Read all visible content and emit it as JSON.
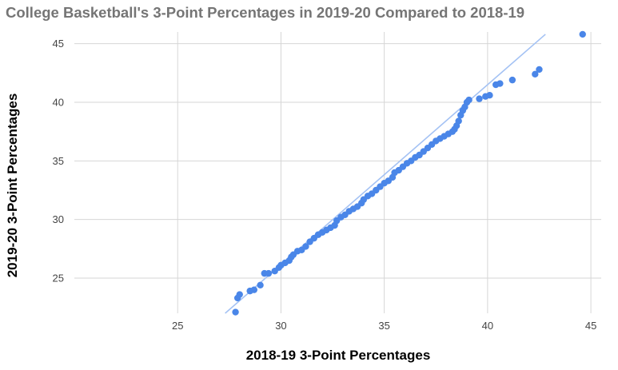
{
  "chart_data": {
    "type": "scatter",
    "title": "College Basketball's 3-Point Percentages in 2019-20 Compared to 2018-19",
    "xlabel": "2018-19 3-Point Percentages",
    "ylabel": "2019-20 3-Point Percentages",
    "xlim": [
      20,
      45.5
    ],
    "ylim": [
      22,
      46
    ],
    "xticks": [
      25,
      30,
      35,
      40,
      45
    ],
    "yticks": [
      25,
      30,
      35,
      40,
      45
    ],
    "grid": true,
    "legend": "none",
    "colors": {
      "points": "#4a86e8",
      "trendline": "#a4c2f4"
    },
    "trendline": {
      "x": [
        27.3,
        42.8
      ],
      "y": [
        22.0,
        45.8
      ]
    },
    "points": [
      {
        "x": 27.8,
        "y": 22.1
      },
      {
        "x": 27.9,
        "y": 23.3
      },
      {
        "x": 28.0,
        "y": 23.6
      },
      {
        "x": 28.5,
        "y": 23.9
      },
      {
        "x": 28.7,
        "y": 24.0
      },
      {
        "x": 29.0,
        "y": 24.4
      },
      {
        "x": 29.2,
        "y": 25.4
      },
      {
        "x": 29.4,
        "y": 25.4
      },
      {
        "x": 29.7,
        "y": 25.6
      },
      {
        "x": 29.9,
        "y": 25.9
      },
      {
        "x": 30.0,
        "y": 26.1
      },
      {
        "x": 30.2,
        "y": 26.3
      },
      {
        "x": 30.4,
        "y": 26.5
      },
      {
        "x": 30.5,
        "y": 26.8
      },
      {
        "x": 30.6,
        "y": 27.0
      },
      {
        "x": 30.8,
        "y": 27.3
      },
      {
        "x": 31.0,
        "y": 27.4
      },
      {
        "x": 31.2,
        "y": 27.7
      },
      {
        "x": 31.4,
        "y": 28.1
      },
      {
        "x": 31.6,
        "y": 28.4
      },
      {
        "x": 31.8,
        "y": 28.7
      },
      {
        "x": 32.0,
        "y": 28.9
      },
      {
        "x": 32.2,
        "y": 29.1
      },
      {
        "x": 32.4,
        "y": 29.3
      },
      {
        "x": 32.6,
        "y": 29.5
      },
      {
        "x": 32.7,
        "y": 29.9
      },
      {
        "x": 32.9,
        "y": 30.2
      },
      {
        "x": 33.1,
        "y": 30.4
      },
      {
        "x": 33.3,
        "y": 30.7
      },
      {
        "x": 33.5,
        "y": 30.9
      },
      {
        "x": 33.7,
        "y": 31.1
      },
      {
        "x": 33.9,
        "y": 31.4
      },
      {
        "x": 34.0,
        "y": 31.7
      },
      {
        "x": 34.2,
        "y": 32.0
      },
      {
        "x": 34.4,
        "y": 32.2
      },
      {
        "x": 34.6,
        "y": 32.5
      },
      {
        "x": 34.8,
        "y": 32.8
      },
      {
        "x": 35.0,
        "y": 33.1
      },
      {
        "x": 35.2,
        "y": 33.3
      },
      {
        "x": 35.4,
        "y": 33.6
      },
      {
        "x": 35.5,
        "y": 34.0
      },
      {
        "x": 35.7,
        "y": 34.2
      },
      {
        "x": 35.9,
        "y": 34.5
      },
      {
        "x": 36.1,
        "y": 34.8
      },
      {
        "x": 36.3,
        "y": 35.0
      },
      {
        "x": 36.5,
        "y": 35.3
      },
      {
        "x": 36.7,
        "y": 35.5
      },
      {
        "x": 36.9,
        "y": 35.8
      },
      {
        "x": 37.1,
        "y": 36.1
      },
      {
        "x": 37.3,
        "y": 36.4
      },
      {
        "x": 37.5,
        "y": 36.7
      },
      {
        "x": 37.7,
        "y": 36.9
      },
      {
        "x": 37.9,
        "y": 37.1
      },
      {
        "x": 38.1,
        "y": 37.3
      },
      {
        "x": 38.3,
        "y": 37.5
      },
      {
        "x": 38.4,
        "y": 37.7
      },
      {
        "x": 38.5,
        "y": 38.0
      },
      {
        "x": 38.6,
        "y": 38.4
      },
      {
        "x": 38.7,
        "y": 38.9
      },
      {
        "x": 38.8,
        "y": 39.3
      },
      {
        "x": 38.9,
        "y": 39.6
      },
      {
        "x": 39.0,
        "y": 40.0
      },
      {
        "x": 39.1,
        "y": 40.2
      },
      {
        "x": 39.6,
        "y": 40.3
      },
      {
        "x": 39.9,
        "y": 40.5
      },
      {
        "x": 40.1,
        "y": 40.6
      },
      {
        "x": 40.4,
        "y": 41.5
      },
      {
        "x": 40.6,
        "y": 41.6
      },
      {
        "x": 41.2,
        "y": 41.9
      },
      {
        "x": 42.3,
        "y": 42.4
      },
      {
        "x": 42.5,
        "y": 42.8
      },
      {
        "x": 44.6,
        "y": 45.8
      }
    ]
  }
}
